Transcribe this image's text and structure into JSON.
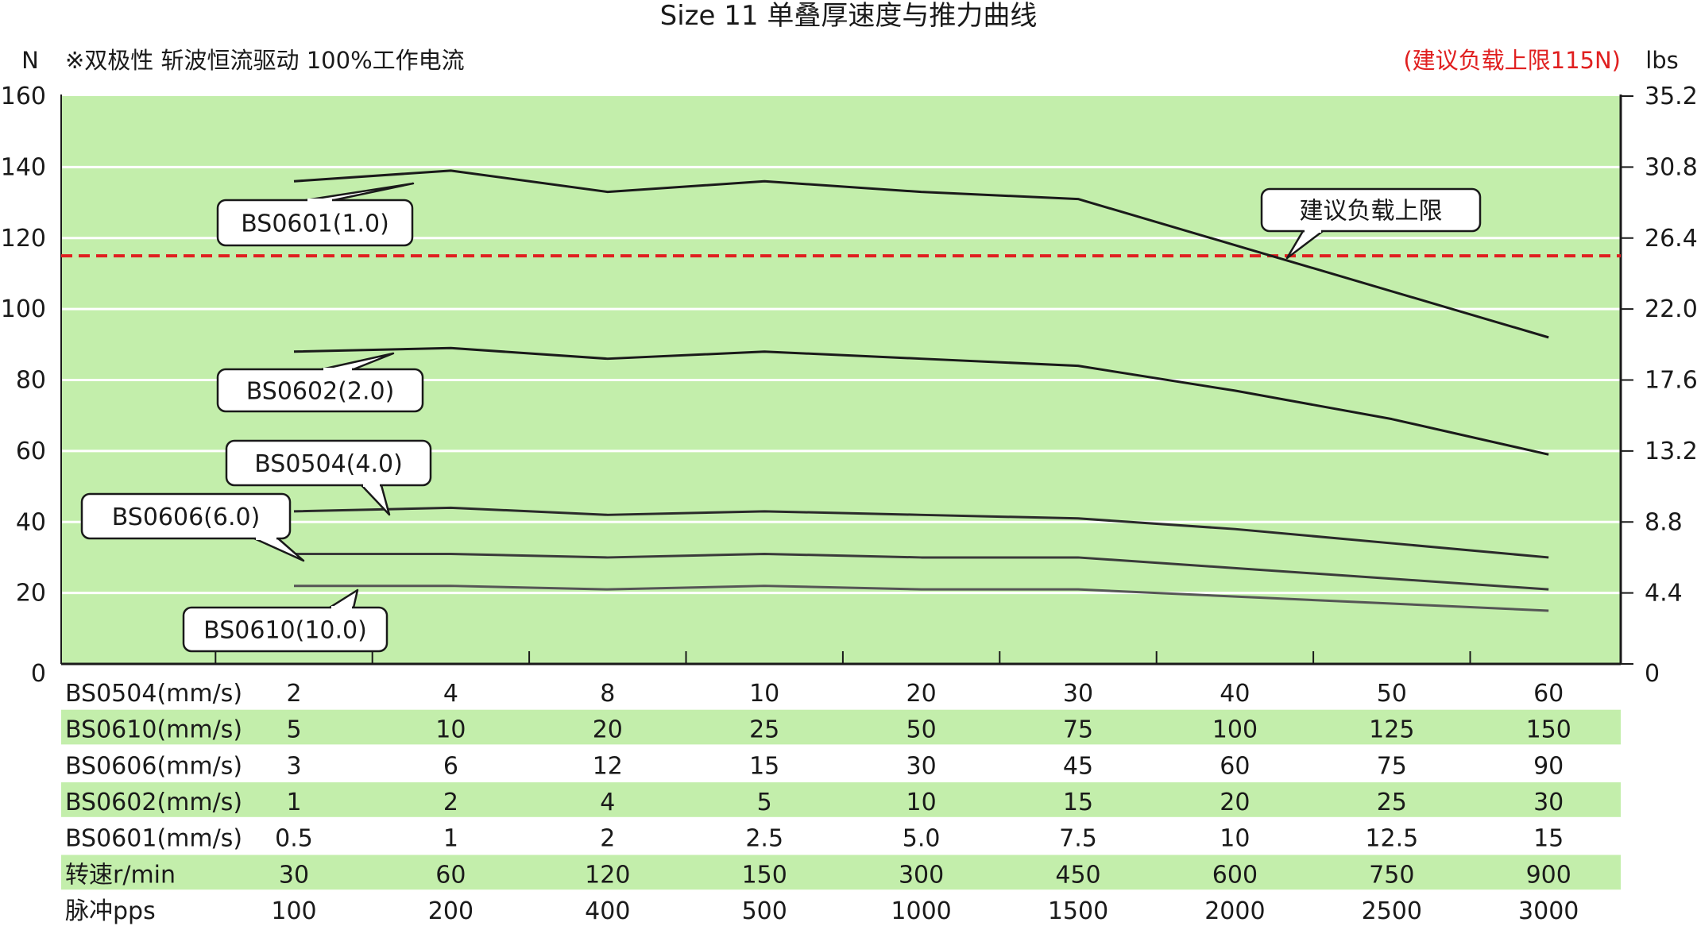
{
  "chart_data": {
    "type": "line",
    "title": "Size 11 单叠厚速度与推力曲线",
    "left_axis_unit": "N",
    "right_axis_unit": "lbs",
    "note": "※双极性 斩波恒流驱动 100%工作电流",
    "limit_note": "(建议负载上限115N)",
    "ylim": [
      0,
      160
    ],
    "y_ticks": [
      0,
      20,
      40,
      60,
      80,
      100,
      120,
      140,
      160
    ],
    "y2_ticks": [
      "0",
      "4.4",
      "8.8",
      "13.2",
      "17.6",
      "22.0",
      "26.4",
      "30.8",
      "35.2"
    ],
    "grid": true,
    "x_points": 9,
    "limit_line": {
      "value": 115,
      "label": "建议负载上限",
      "color": "#e02020"
    },
    "series": [
      {
        "name": "BS0601(1.0)",
        "values": [
          136,
          139,
          133,
          136,
          133,
          131,
          118,
          105,
          92
        ]
      },
      {
        "name": "BS0602(2.0)",
        "values": [
          88,
          89,
          86,
          88,
          86,
          84,
          77,
          69,
          59
        ]
      },
      {
        "name": "BS0504(4.0)",
        "values": [
          43,
          44,
          42,
          43,
          42,
          41,
          38,
          34,
          30
        ]
      },
      {
        "name": "BS0606(6.0)",
        "values": [
          31,
          31,
          30,
          31,
          30,
          30,
          27,
          24,
          21
        ]
      },
      {
        "name": "BS0610(10.0)",
        "values": [
          22,
          22,
          21,
          22,
          21,
          21,
          19,
          17,
          15
        ]
      }
    ],
    "table": [
      {
        "label": "BS0504(mm/s)",
        "values": [
          "2",
          "4",
          "8",
          "10",
          "20",
          "30",
          "40",
          "50",
          "60"
        ]
      },
      {
        "label": "BS0610(mm/s)",
        "values": [
          "5",
          "10",
          "20",
          "25",
          "50",
          "75",
          "100",
          "125",
          "150"
        ]
      },
      {
        "label": "BS0606(mm/s)",
        "values": [
          "3",
          "6",
          "12",
          "15",
          "30",
          "45",
          "60",
          "75",
          "90"
        ]
      },
      {
        "label": "BS0602(mm/s)",
        "values": [
          "1",
          "2",
          "4",
          "5",
          "10",
          "15",
          "20",
          "25",
          "30"
        ]
      },
      {
        "label": "BS0601(mm/s)",
        "values": [
          "0.5",
          "1",
          "2",
          "2.5",
          "5.0",
          "7.5",
          "10",
          "12.5",
          "15"
        ]
      },
      {
        "label": "转速r/min",
        "values": [
          "30",
          "60",
          "120",
          "150",
          "300",
          "450",
          "600",
          "750",
          "900"
        ]
      },
      {
        "label": "脉冲pps",
        "values": [
          "100",
          "200",
          "400",
          "500",
          "1000",
          "1500",
          "2000",
          "2500",
          "3000"
        ]
      }
    ],
    "colors": {
      "plot_bg": "#c3eeab",
      "band_bg": "#c3eeab",
      "grid": "#ffffff",
      "series": [
        "#1a1a1a",
        "#1a1a1a",
        "#2a2a2a",
        "#3a3a3a",
        "#555555"
      ]
    }
  }
}
